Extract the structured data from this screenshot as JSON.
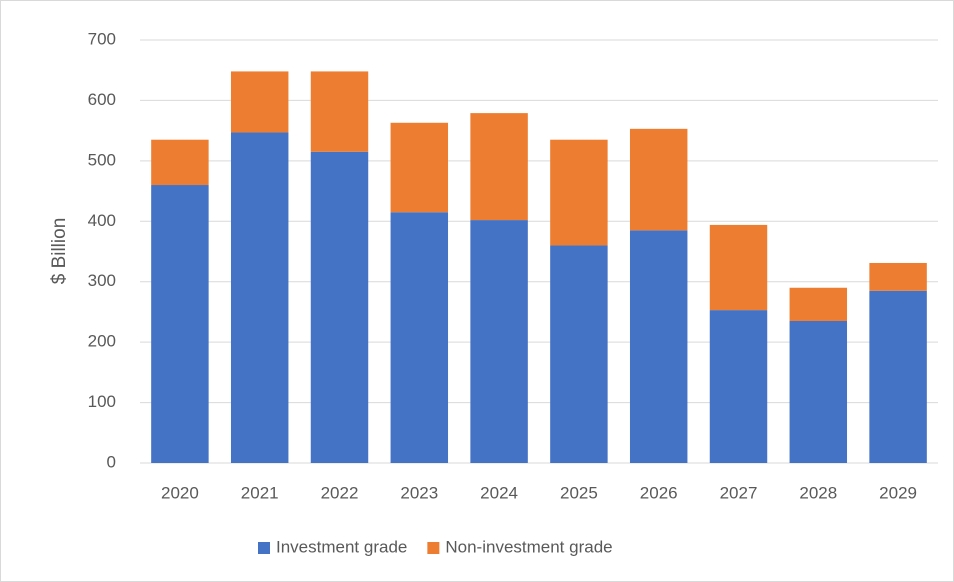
{
  "chart_data": {
    "type": "stacked_bar",
    "y_label": "$ Billion",
    "categories": [
      "2020",
      "2021",
      "2022",
      "2023",
      "2024",
      "2025",
      "2026",
      "2027",
      "2028",
      "2029"
    ],
    "series": [
      {
        "name": "Investment grade",
        "color": "#4472c4",
        "values": [
          460,
          547,
          515,
          415,
          402,
          360,
          385,
          253,
          235,
          285
        ]
      },
      {
        "name": "Non-investment grade",
        "color": "#ed7d31",
        "values": [
          75,
          101,
          133,
          148,
          177,
          175,
          168,
          141,
          55,
          46
        ]
      }
    ],
    "ylim": [
      0,
      700
    ],
    "yticks": [
      0,
      100,
      200,
      300,
      400,
      500,
      600,
      700
    ],
    "grid": true,
    "legend": "bottom"
  }
}
